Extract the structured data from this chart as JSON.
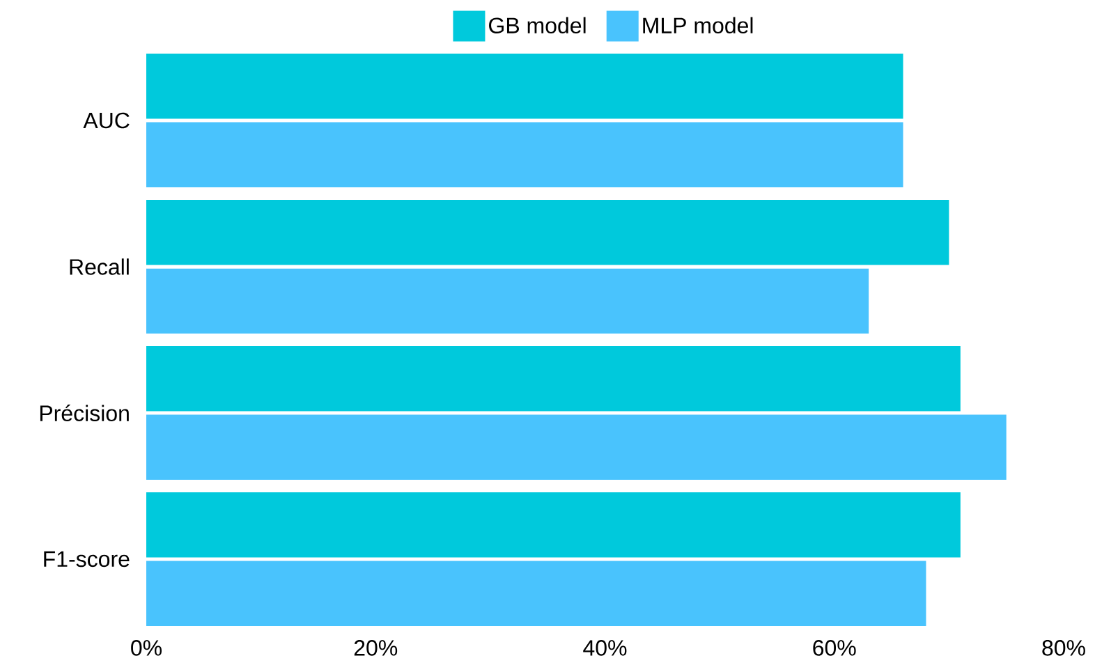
{
  "chart_data": {
    "type": "bar",
    "orientation": "horizontal",
    "categories": [
      "AUC",
      "Recall",
      "Précision",
      "F1-score"
    ],
    "series": [
      {
        "name": "GB model",
        "color": "#00c9dc",
        "values": [
          66,
          70,
          71,
          71
        ]
      },
      {
        "name": "MLP model",
        "color": "#49c3fd",
        "values": [
          66,
          63,
          75,
          68
        ]
      }
    ],
    "xlim": [
      0,
      80
    ],
    "xticks": [
      {
        "value": 0,
        "label": "0%"
      },
      {
        "value": 20,
        "label": "20%"
      },
      {
        "value": 40,
        "label": "40%"
      },
      {
        "value": 60,
        "label": "60%"
      },
      {
        "value": 80,
        "label": "80%"
      }
    ],
    "legend": "top"
  }
}
